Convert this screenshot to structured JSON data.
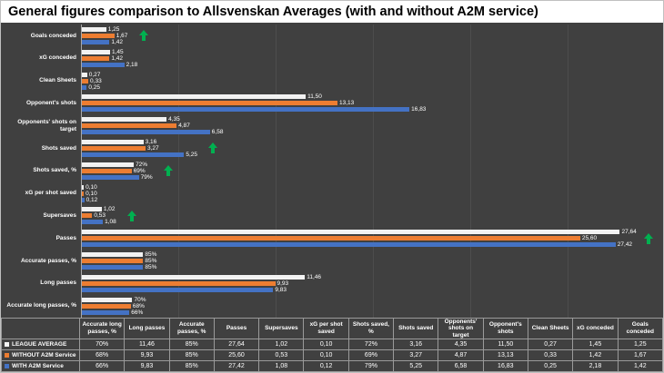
{
  "title": "General figures comparison to Allsvenskan Averages (with and without A2M service)",
  "colors": {
    "background": "#404040",
    "title_bg": "#ffffff",
    "title_text": "#000000",
    "arrow_green": "#00b050",
    "table_border": "#9a9a9a",
    "text": "#ffffff"
  },
  "series": [
    {
      "name": "LEAGUE AVERAGE",
      "color": "#f2f2f2"
    },
    {
      "name": "WITHOUT A2M Service",
      "color": "#ed7d31"
    },
    {
      "name": "WITH A2M Service",
      "color": "#4472c4"
    }
  ],
  "chart_data": {
    "type": "bar",
    "orientation": "horizontal",
    "title": "General figures comparison to Allsvenskan Averages (with and without A2M service)",
    "legend_position": "bottom-table",
    "value_axis_visible": false,
    "xlim": [
      0,
      30
    ],
    "series_names": [
      "LEAGUE AVERAGE",
      "WITHOUT A2M Service",
      "WITH A2M Service"
    ],
    "categories": [
      {
        "label": "Goals conceded",
        "values": [
          1.25,
          1.67,
          1.42
        ],
        "display": [
          "1,25",
          "1,67",
          "1,42"
        ],
        "percent": false,
        "improvement_arrow": true
      },
      {
        "label": "xG conceded",
        "values": [
          1.45,
          1.42,
          2.18
        ],
        "display": [
          "1,45",
          "1,42",
          "2,18"
        ],
        "percent": false,
        "improvement_arrow": false
      },
      {
        "label": "Clean Sheets",
        "values": [
          0.27,
          0.33,
          0.25
        ],
        "display": [
          "0,27",
          "0,33",
          "0,25"
        ],
        "percent": false,
        "improvement_arrow": false
      },
      {
        "label": "Opponent's shots",
        "values": [
          11.5,
          13.13,
          16.83
        ],
        "display": [
          "11,50",
          "13,13",
          "16,83"
        ],
        "percent": false,
        "improvement_arrow": false
      },
      {
        "label": "Opponents' shots on target",
        "values": [
          4.35,
          4.87,
          6.58
        ],
        "display": [
          "4,35",
          "4,87",
          "6,58"
        ],
        "percent": false,
        "improvement_arrow": false
      },
      {
        "label": "Shots saved",
        "values": [
          3.16,
          3.27,
          5.25
        ],
        "display": [
          "3,16",
          "3,27",
          "5,25"
        ],
        "percent": false,
        "improvement_arrow": true
      },
      {
        "label": "Shots saved, %",
        "values": [
          72,
          69,
          79
        ],
        "display": [
          "72%",
          "69%",
          "79%"
        ],
        "percent": true,
        "improvement_arrow": true
      },
      {
        "label": "xG per shot saved",
        "values": [
          0.1,
          0.1,
          0.12
        ],
        "display": [
          "0,10",
          "0,10",
          "0,12"
        ],
        "percent": false,
        "improvement_arrow": false
      },
      {
        "label": "Supersaves",
        "values": [
          1.02,
          0.53,
          1.08
        ],
        "display": [
          "1,02",
          "0,53",
          "1,08"
        ],
        "percent": false,
        "improvement_arrow": true
      },
      {
        "label": "Passes",
        "values": [
          27.64,
          25.6,
          27.42
        ],
        "display": [
          "27,64",
          "25,60",
          "27,42"
        ],
        "percent": false,
        "improvement_arrow": true
      },
      {
        "label": "Accurate passes, %",
        "values": [
          85,
          85,
          85
        ],
        "display": [
          "85%",
          "85%",
          "85%"
        ],
        "percent": true,
        "improvement_arrow": false
      },
      {
        "label": "Long passes",
        "values": [
          11.46,
          9.93,
          9.83
        ],
        "display": [
          "11,46",
          "9,93",
          "9,83"
        ],
        "percent": false,
        "improvement_arrow": false
      },
      {
        "label": "Accurate long passes, %",
        "values": [
          70,
          68,
          66
        ],
        "display": [
          "70%",
          "68%",
          "66%"
        ],
        "percent": true,
        "improvement_arrow": false
      }
    ]
  },
  "table": {
    "corner_label": "",
    "columns": [
      "Accurate long passes, %",
      "Long passes",
      "Accurate passes, %",
      "Passes",
      "Supersaves",
      "xG per shot saved",
      "Shots saved, %",
      "Shots saved",
      "Opponents' shots on target",
      "Opponent's shots",
      "Clean Sheets",
      "xG conceded",
      "Goals conceded"
    ],
    "rows": [
      {
        "name": "LEAGUE AVERAGE",
        "color": "#f2f2f2",
        "cells": [
          "70%",
          "11,46",
          "85%",
          "27,64",
          "1,02",
          "0,10",
          "72%",
          "3,16",
          "4,35",
          "11,50",
          "0,27",
          "1,45",
          "1,25"
        ]
      },
      {
        "name": "WITHOUT A2M Service",
        "color": "#ed7d31",
        "cells": [
          "68%",
          "9,93",
          "85%",
          "25,60",
          "0,53",
          "0,10",
          "69%",
          "3,27",
          "4,87",
          "13,13",
          "0,33",
          "1,42",
          "1,67"
        ]
      },
      {
        "name": "WITH A2M Service",
        "color": "#4472c4",
        "cells": [
          "66%",
          "9,83",
          "85%",
          "27,42",
          "1,08",
          "0,12",
          "79%",
          "5,25",
          "6,58",
          "16,83",
          "0,25",
          "2,18",
          "1,42"
        ]
      }
    ]
  }
}
